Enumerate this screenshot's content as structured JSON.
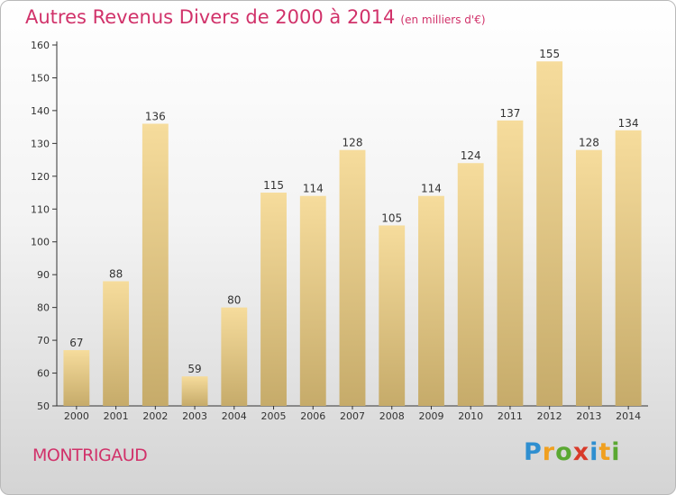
{
  "title": "Autres Revenus Divers de 2000 à 2014",
  "unit": "(en milliers d'€)",
  "commune": "MONTRIGAUD",
  "brand": {
    "letters": [
      {
        "ch": "P",
        "color": "#2f8fd0"
      },
      {
        "ch": "r",
        "color": "#f0a020"
      },
      {
        "ch": "o",
        "color": "#5aa832"
      },
      {
        "ch": "x",
        "color": "#d83a2a"
      },
      {
        "ch": "i",
        "color": "#2f8fd0"
      },
      {
        "ch": "t",
        "color": "#f0a020"
      },
      {
        "ch": "i",
        "color": "#5aa832"
      }
    ]
  },
  "colors": {
    "title": "#d1326a",
    "bar_light": "#f6dc9c",
    "bar_dark": "#c6ab6a",
    "axis": "#333333",
    "grid": "#cfcfcf"
  },
  "chart_data": {
    "type": "bar",
    "title": "Autres Revenus Divers de 2000 à 2014",
    "subtitle": "(en milliers d'€)",
    "xlabel": "",
    "ylabel": "",
    "categories": [
      "2000",
      "2001",
      "2002",
      "2003",
      "2004",
      "2005",
      "2006",
      "2007",
      "2008",
      "2009",
      "2010",
      "2011",
      "2012",
      "2013",
      "2014"
    ],
    "values": [
      67,
      88,
      136,
      59,
      80,
      115,
      114,
      128,
      105,
      114,
      124,
      137,
      155,
      128,
      134
    ],
    "ylim": [
      50,
      160
    ],
    "yticks": [
      50,
      60,
      70,
      80,
      90,
      100,
      110,
      120,
      130,
      140,
      150,
      160
    ],
    "grid": false,
    "legend": "none"
  }
}
